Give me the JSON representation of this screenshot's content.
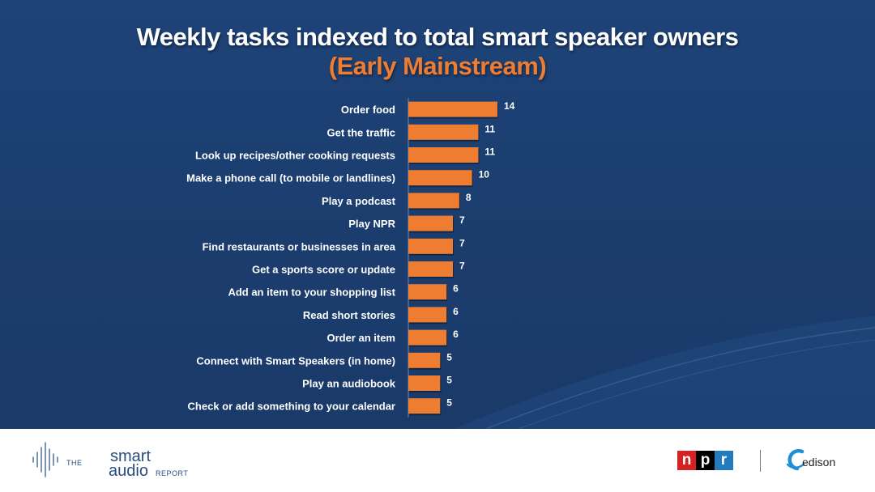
{
  "chart_data": {
    "type": "bar",
    "orientation": "horizontal",
    "title": "Weekly tasks indexed to total smart speaker owners",
    "subtitle": "(Early Mainstream)",
    "categories": [
      "Order food",
      "Get the traffic",
      "Look up recipes/other cooking requests",
      "Make a phone call (to mobile or landlines)",
      "Play a podcast",
      "Play NPR",
      "Find restaurants or businesses in area",
      "Get a sports score or update",
      "Add an item to your shopping list",
      "Read short stories",
      "Order an item",
      "Connect with Smart Speakers (in home)",
      "Play an audiobook",
      "Check or add something to your calendar"
    ],
    "values": [
      14,
      11,
      11,
      10,
      8,
      7,
      7,
      7,
      6,
      6,
      6,
      5,
      5,
      5
    ],
    "xlim": [
      0,
      14
    ],
    "grid": false,
    "legend": "none",
    "bar_color": "#ee7d31",
    "background_color": "#1c3f71"
  },
  "footer": {
    "logo": {
      "the": "THE",
      "smart": "smart",
      "audio": "audio",
      "report": "REPORT"
    },
    "npr": [
      "n",
      "p",
      "r"
    ],
    "edison": "edison"
  }
}
